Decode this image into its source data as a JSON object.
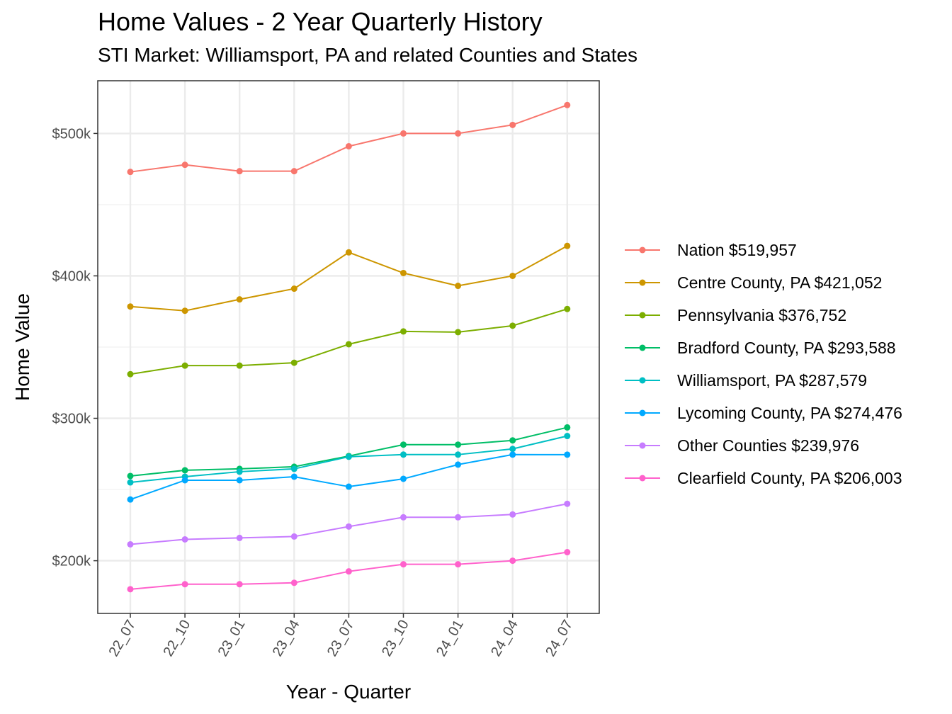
{
  "chart_data": {
    "type": "line",
    "title": "Home Values - 2 Year Quarterly History",
    "subtitle": "STI Market: Williamsport, PA and related Counties and States",
    "xlabel": "Year - Quarter",
    "ylabel": "Home Value",
    "categories": [
      "22_07",
      "22_10",
      "23_01",
      "23_04",
      "23_07",
      "23_10",
      "24_01",
      "24_04",
      "24_07"
    ],
    "yticks": [
      200000,
      300000,
      400000,
      500000
    ],
    "ytick_labels": [
      "$200k",
      "$300k",
      "$400k",
      "$500k"
    ],
    "ylim": [
      163000,
      537000
    ],
    "grid": true,
    "legend_position": "right",
    "series": [
      {
        "name": "Nation $519,957",
        "color": "#F8766D",
        "values": [
          473000,
          478000,
          473500,
          473500,
          491000,
          500000,
          500000,
          506000,
          519957
        ]
      },
      {
        "name": "Centre County, PA $421,052",
        "color": "#CD9600",
        "values": [
          378500,
          375500,
          383500,
          391000,
          416500,
          402000,
          393000,
          400000,
          421052
        ]
      },
      {
        "name": "Pennsylvania $376,752",
        "color": "#7CAE00",
        "values": [
          331000,
          337000,
          337000,
          339000,
          352000,
          361000,
          360500,
          365000,
          376752
        ]
      },
      {
        "name": "Bradford County, PA $293,588",
        "color": "#00BE67",
        "values": [
          259500,
          263500,
          264500,
          266000,
          273500,
          281500,
          281500,
          284500,
          293588
        ]
      },
      {
        "name": "Williamsport, PA $287,579",
        "color": "#00BFC4",
        "values": [
          255000,
          259000,
          262500,
          264500,
          273000,
          274500,
          274500,
          278500,
          287579
        ]
      },
      {
        "name": "Lycoming County, PA $274,476",
        "color": "#00A9FF",
        "values": [
          243000,
          256500,
          256500,
          259000,
          252000,
          257500,
          267500,
          274500,
          274476
        ]
      },
      {
        "name": "Other Counties $239,976",
        "color": "#C77CFF",
        "values": [
          211500,
          215000,
          216000,
          217000,
          224000,
          230500,
          230500,
          232500,
          239976
        ]
      },
      {
        "name": "Clearfield County, PA $206,003",
        "color": "#FF61CC",
        "values": [
          180000,
          183500,
          183500,
          184500,
          192500,
          197500,
          197500,
          200000,
          206003
        ]
      }
    ]
  }
}
